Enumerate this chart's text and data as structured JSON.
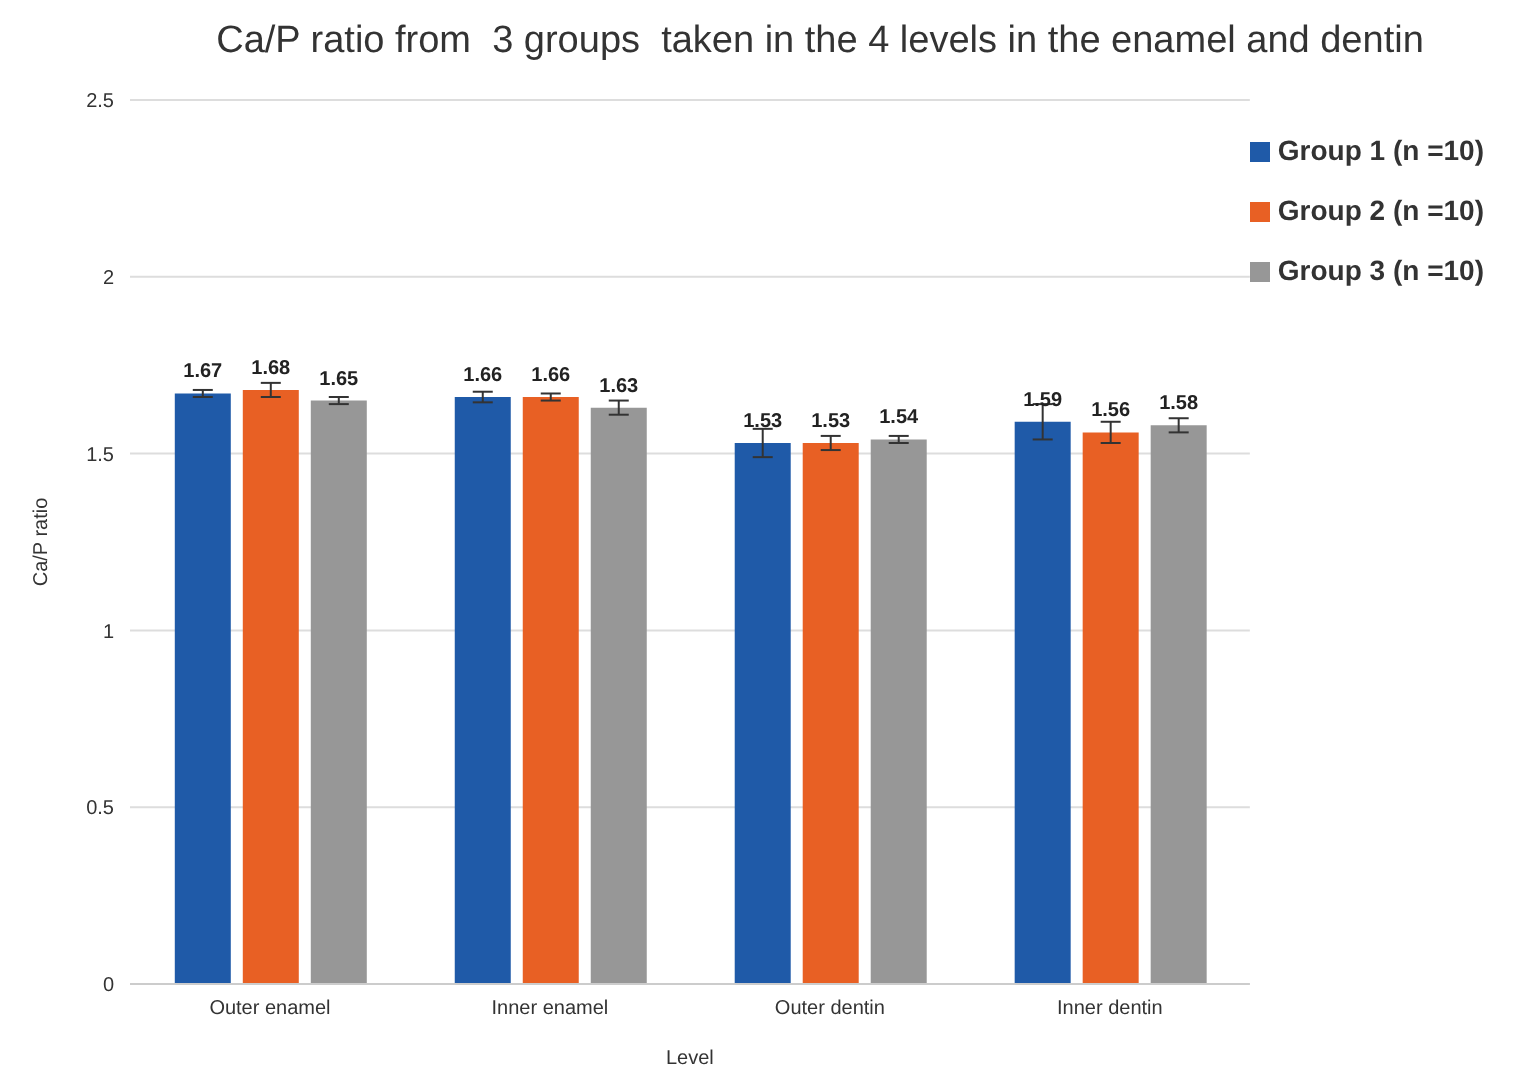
{
  "chart_data": {
    "type": "bar",
    "title": "Ca/P ratio from  3 groups  taken in the 4 levels in the enamel and dentin",
    "xlabel": "Level",
    "ylabel": "Ca/P ratio",
    "categories": [
      "Outer enamel",
      "Inner enamel",
      "Outer dentin",
      "Inner dentin"
    ],
    "series": [
      {
        "name": "Group 1 (n =10)",
        "color": "#1f5aa8",
        "values": [
          1.67,
          1.66,
          1.53,
          1.59
        ],
        "errors": [
          0.01,
          0.015,
          0.04,
          0.05
        ]
      },
      {
        "name": "Group 2 (n =10)",
        "color": "#e86024",
        "values": [
          1.68,
          1.66,
          1.53,
          1.56
        ],
        "errors": [
          0.02,
          0.01,
          0.02,
          0.03
        ]
      },
      {
        "name": "Group 3 (n =10)",
        "color": "#979797",
        "values": [
          1.65,
          1.63,
          1.54,
          1.58
        ],
        "errors": [
          0.01,
          0.02,
          0.01,
          0.02
        ]
      }
    ],
    "ylim": [
      0,
      2.5
    ],
    "yticks": [
      0,
      0.5,
      1,
      1.5,
      2,
      2.5
    ],
    "grid": "y",
    "legend": "top right",
    "data_labels": true
  }
}
